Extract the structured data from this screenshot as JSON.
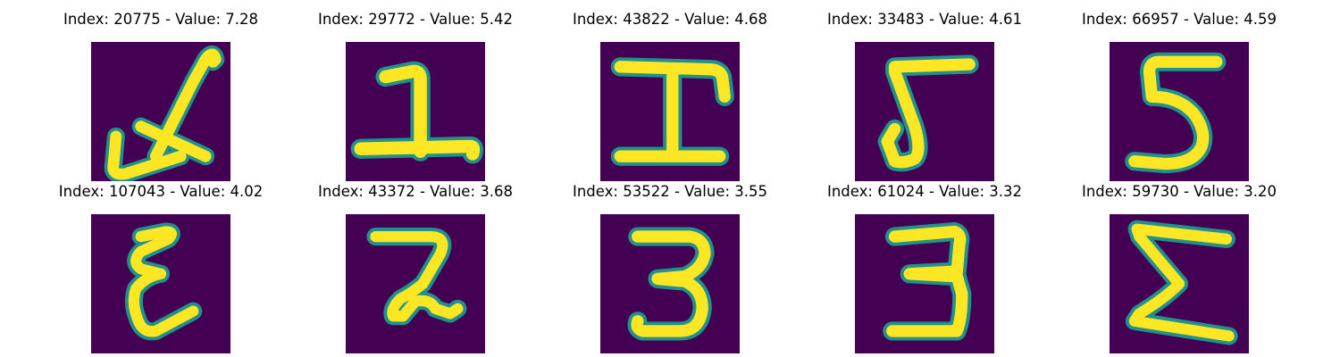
{
  "images": [
    {
      "title": "Index: 20775 - Value: 7.28",
      "depicts": "4"
    },
    {
      "title": "Index: 29772 - Value: 5.42",
      "depicts": "1"
    },
    {
      "title": "Index: 43822 - Value: 4.68",
      "depicts": "I"
    },
    {
      "title": "Index: 33483 - Value: 4.61",
      "depicts": "5"
    },
    {
      "title": "Index: 66957 - Value: 4.59",
      "depicts": "5"
    },
    {
      "title": "Index: 107043 - Value: 4.02",
      "depicts": "E"
    },
    {
      "title": "Index: 43372 - Value: 3.68",
      "depicts": "2"
    },
    {
      "title": "Index: 53522 - Value: 3.55",
      "depicts": "3"
    },
    {
      "title": "Index: 61024 - Value: 3.32",
      "depicts": "3"
    },
    {
      "title": "Index: 59730 - Value: 3.20",
      "depicts": "Σ"
    }
  ],
  "colors": {
    "background": "#440154",
    "stroke_edge": "#21918c",
    "stroke_core": "#fde725"
  }
}
